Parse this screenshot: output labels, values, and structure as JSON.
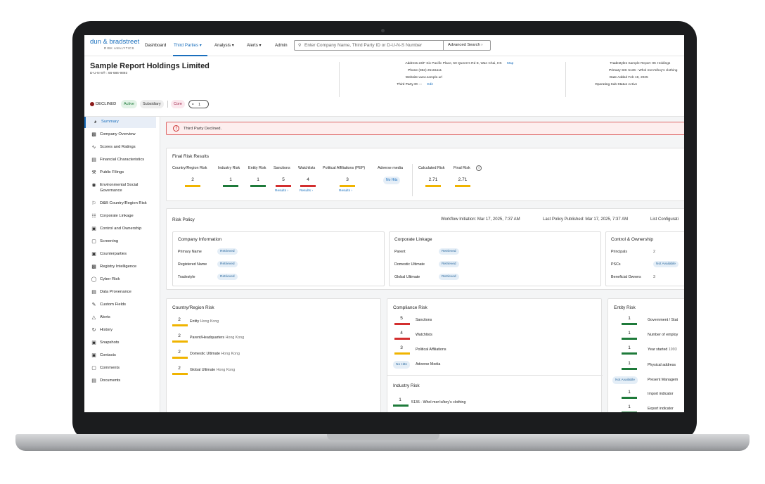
{
  "brand": {
    "name": "dun & bradstreet",
    "sub": "RISK ANALYTICS"
  },
  "nav": {
    "items": [
      {
        "label": "Dashboard"
      },
      {
        "label": "Third Parties ▾"
      },
      {
        "label": "Analysis ▾"
      },
      {
        "label": "Alerts ▾"
      },
      {
        "label": "Admin"
      }
    ],
    "search_placeholder": "Enter Company Name, Third Party ID or D-U-N-S Number",
    "advanced_search": "Advanced Search ›"
  },
  "company": {
    "name": "Sample Report Holdings Limited",
    "duns": "D-U-N-S® : 66-686-9893",
    "address_label": "Address",
    "address": "23/F Six Pacific Place, 50 Queen's Rd E, Wan Chai, HK",
    "map": "Map",
    "phone_label": "Phone",
    "phone": "(852) 25161111",
    "website_label": "Website",
    "website": "www.sample.url",
    "tpid_label": "Third Party ID",
    "tpid": "---",
    "edit": "Edit",
    "tradestyles_label": "Tradestyles",
    "tradestyles": "Sample Report HK Holdings",
    "sic_label": "Primary SIC",
    "sic": "5136 - Whol men's/boy's clothing",
    "date_label": "Date Added",
    "date": "Feb 19, 2025",
    "opstatus_label": "Operating Sub Status",
    "opstatus": "Active"
  },
  "status": {
    "declined": "DECLINED",
    "active": "Active",
    "subsidiary": "Subsidiary",
    "core": "Core",
    "tag_count": "1"
  },
  "sidebar": {
    "items": [
      {
        "label": "Summary"
      },
      {
        "label": "Company Overview"
      },
      {
        "label": "Scores and Ratings"
      },
      {
        "label": "Financial Characteristics"
      },
      {
        "label": "Public Filings"
      },
      {
        "label": "Environmental Social"
      },
      {
        "label": "Governance"
      },
      {
        "label": "D&B Country/Region Risk"
      },
      {
        "label": "Corporate Linkage"
      },
      {
        "label": "Control and Ownership"
      },
      {
        "label": "Screening"
      },
      {
        "label": "Counterparties"
      },
      {
        "label": "Registry Intelligence"
      },
      {
        "label": "Cyber Risk"
      },
      {
        "label": "Data Provenance"
      },
      {
        "label": "Custom Fields"
      },
      {
        "label": "Alerts"
      },
      {
        "label": "History"
      },
      {
        "label": "Snapshots"
      },
      {
        "label": "Contacts"
      },
      {
        "label": "Comments"
      },
      {
        "label": "Documents"
      }
    ]
  },
  "alert": {
    "text": "Third Party Declined."
  },
  "final_risk": {
    "title": "Final Risk Results",
    "columns": [
      {
        "label": "Country/Region Risk",
        "score": "2",
        "color": "#f0b400",
        "results": ""
      },
      {
        "label": "Industry Risk",
        "score": "1",
        "color": "#1e7a3a",
        "results": ""
      },
      {
        "label": "Entity Risk",
        "score": "1",
        "color": "#1e7a3a",
        "results": ""
      },
      {
        "label": "Sanctions",
        "score": "5",
        "color": "#d32f2f",
        "results": "Results ›"
      },
      {
        "label": "Watchlists",
        "score": "4",
        "color": "#d32f2f",
        "results": "Results ›"
      },
      {
        "label": "Political Affiliations (PEP)",
        "score": "3",
        "color": "#f0b400",
        "results": "Results ›"
      },
      {
        "label": "Adverse media",
        "score": "No Hits",
        "color": "",
        "results": ""
      }
    ],
    "calculated_label": "Calculated Risk",
    "calculated": "2.71",
    "final_label": "Final Risk",
    "final": "2.71"
  },
  "risk_policy": {
    "title": "Risk Policy",
    "workflow": "Workflow Initiation: Mar 17, 2025, 7:37 AM",
    "last_policy": "Last Policy Published: Mar 17, 2025, 7:37 AM",
    "list_config": "List Configurati",
    "company_info": {
      "title": "Company Information",
      "rows": [
        {
          "label": "Primary Name",
          "value": "Retrieved"
        },
        {
          "label": "Registered Name",
          "value": "Retrieved"
        },
        {
          "label": "Tradestyle",
          "value": "Retrieved"
        }
      ]
    },
    "corporate_linkage": {
      "title": "Corporate Linkage",
      "rows": [
        {
          "label": "Parent",
          "value": "Retrieved"
        },
        {
          "label": "Domestic Ultimate",
          "value": "Retrieved"
        },
        {
          "label": "Global Ultimate",
          "value": "Retrieved"
        }
      ]
    },
    "control_ownership": {
      "title": "Control & Ownership",
      "rows": [
        {
          "label": "Principals",
          "value": "2"
        },
        {
          "label": "PSCs",
          "value": "Not Available"
        },
        {
          "label": "Beneficial Owners",
          "value": "3"
        }
      ]
    }
  },
  "country_risk": {
    "title": "Country/Region Risk",
    "rows": [
      {
        "score": "2",
        "label": "Entity",
        "value": "Hong Kong"
      },
      {
        "score": "2",
        "label": "Parent/Headquarters",
        "value": "Hong Kong"
      },
      {
        "score": "2",
        "label": "Domestic Ultimate",
        "value": "Hong Kong"
      },
      {
        "score": "2",
        "label": "Global Ultimate",
        "value": "Hong Kong"
      }
    ]
  },
  "compliance_risk": {
    "title": "Compliance Risk",
    "rows": [
      {
        "score": "5",
        "label": "Sanctions"
      },
      {
        "score": "4",
        "label": "Watchlists"
      },
      {
        "score": "3",
        "label": "Political Affiliations"
      },
      {
        "score": "No Hits",
        "label": "Adverse Media"
      }
    ]
  },
  "industry_risk": {
    "title": "Industry Risk",
    "rows": [
      {
        "score": "1",
        "label": "5136 - Whol men's/boy's clothing"
      }
    ]
  },
  "entity_risk": {
    "title": "Entity Risk",
    "rows": [
      {
        "score": "1",
        "label": "Government / Stat"
      },
      {
        "score": "1",
        "label": "Number of employ"
      },
      {
        "score": "1",
        "label": "Year started",
        "value": "1993"
      },
      {
        "score": "1",
        "label": "Physical address",
        "value": ""
      },
      {
        "score": "Not Available",
        "label": "Present Managem"
      },
      {
        "score": "1",
        "label": "Import indicator"
      },
      {
        "score": "1",
        "label": "Export indicator"
      }
    ]
  }
}
